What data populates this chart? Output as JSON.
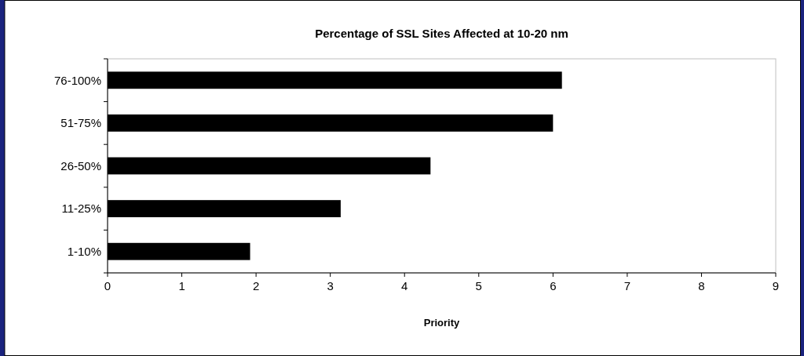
{
  "chart_data": {
    "type": "bar",
    "orientation": "horizontal",
    "title": "Percentage of SSL Sites Affected at 10-20 nm",
    "xlabel": "Priority",
    "categories": [
      "76-100%",
      "51-75%",
      "26-50%",
      "11-25%",
      "1-10%"
    ],
    "values": [
      6.12,
      6.0,
      4.35,
      3.14,
      1.92
    ],
    "color": "#000000",
    "xlim": [
      0,
      9
    ],
    "xticks": [
      0,
      1,
      2,
      3,
      4,
      5,
      6,
      7,
      8,
      9
    ],
    "grid": false
  }
}
